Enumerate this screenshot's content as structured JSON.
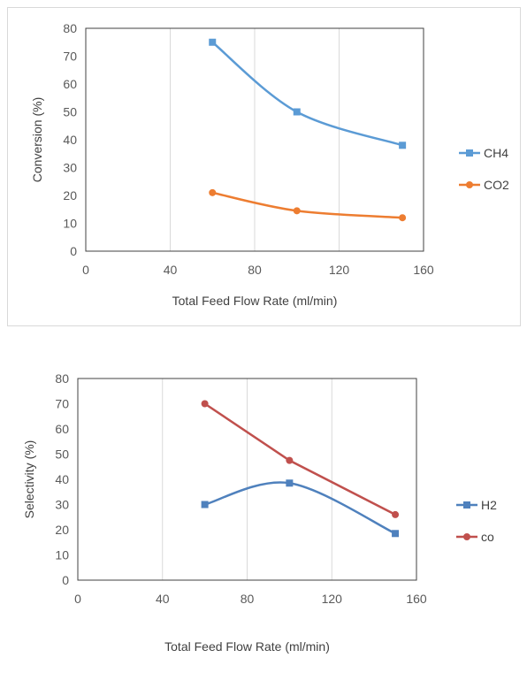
{
  "chart_data": [
    {
      "type": "line",
      "title": "",
      "xlabel": "Total Feed Flow Rate (ml/min)",
      "ylabel": "Conversion (%)",
      "xlim": [
        0,
        160
      ],
      "ylim": [
        0,
        80
      ],
      "xticks": [
        "0",
        "40",
        "80",
        "120",
        "160"
      ],
      "yticks": [
        "0",
        "10",
        "20",
        "30",
        "40",
        "50",
        "60",
        "70",
        "80"
      ],
      "grid": "vertical",
      "legend_position": "right",
      "series": [
        {
          "name": "CH4",
          "color": "#5b9bd5",
          "marker": "square",
          "x": [
            60,
            100,
            150
          ],
          "y": [
            75,
            50,
            38
          ]
        },
        {
          "name": "CO2",
          "color": "#ed7d31",
          "marker": "circle",
          "x": [
            60,
            100,
            150
          ],
          "y": [
            21,
            14.5,
            12
          ]
        }
      ]
    },
    {
      "type": "line",
      "title": "",
      "xlabel": "Total Feed Flow Rate (ml/min)",
      "ylabel": "Selectivity (%)",
      "xlim": [
        0,
        160
      ],
      "ylim": [
        0,
        80
      ],
      "xticks": [
        "0",
        "40",
        "80",
        "120",
        "160"
      ],
      "yticks": [
        "0",
        "10",
        "20",
        "30",
        "40",
        "50",
        "60",
        "70",
        "80"
      ],
      "grid": "vertical",
      "legend_position": "right",
      "series": [
        {
          "name": "H2",
          "color": "#4f81bd",
          "marker": "square",
          "x": [
            60,
            100,
            150
          ],
          "y": [
            30,
            38.5,
            18.5
          ]
        },
        {
          "name": "co",
          "color": "#c0504d",
          "marker": "circle",
          "x": [
            60,
            100,
            150
          ],
          "y": [
            70,
            47.5,
            26
          ]
        }
      ]
    }
  ]
}
